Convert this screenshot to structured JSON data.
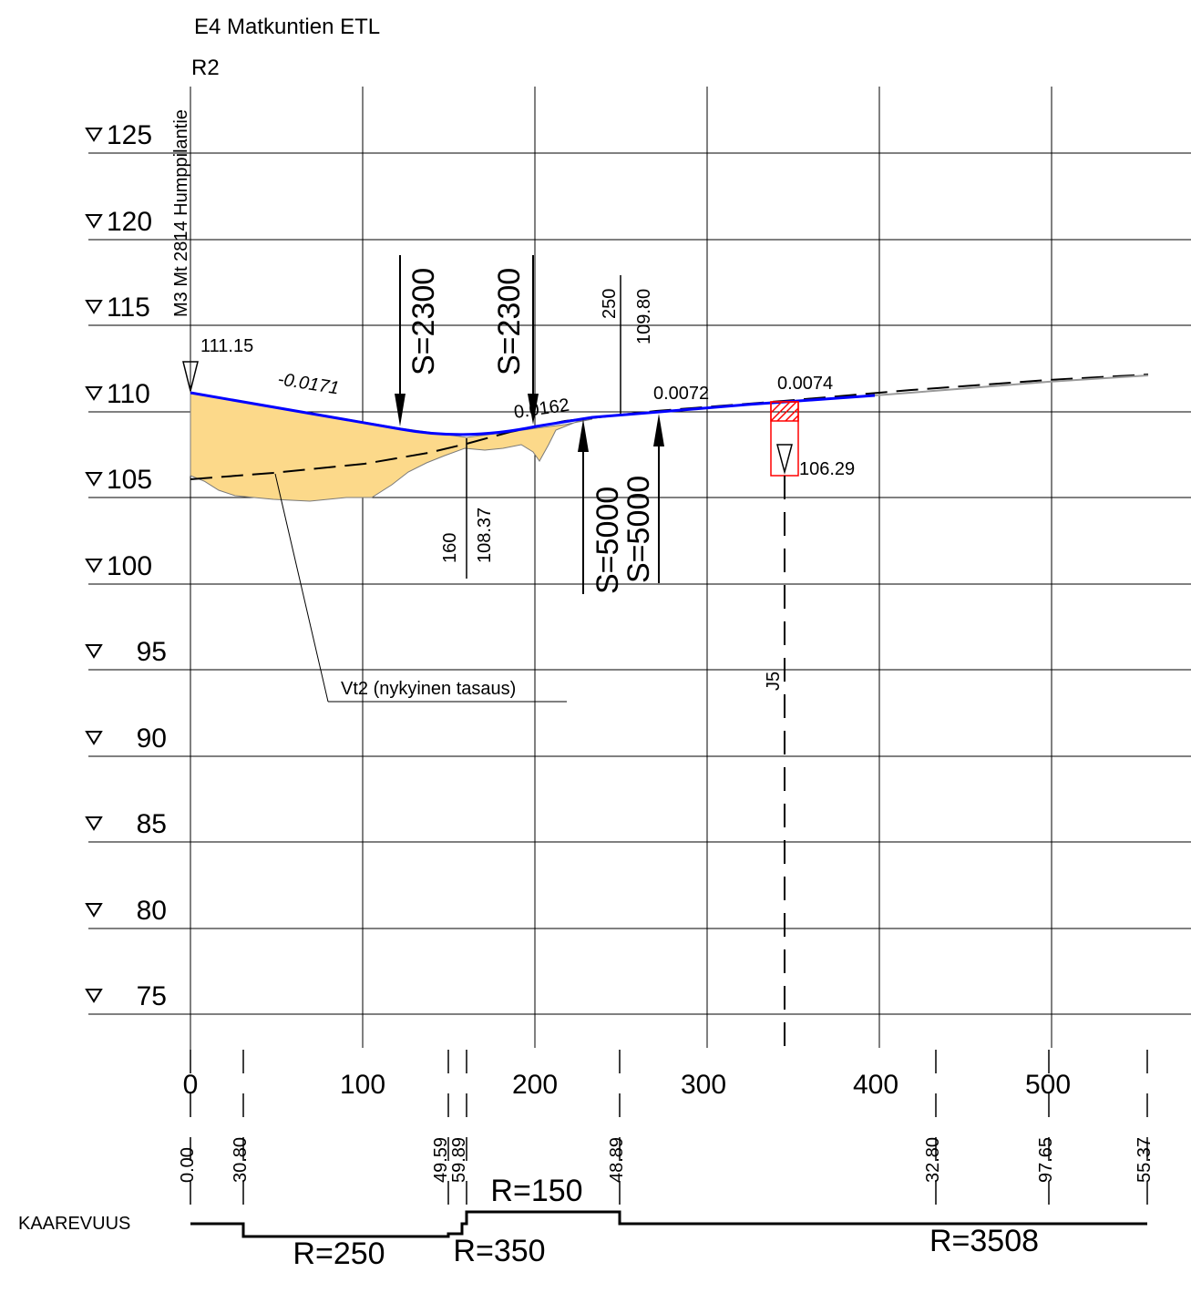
{
  "header": {
    "title": "E4 Matkuntien ETL",
    "subtitle": "R2"
  },
  "road_label": "M3 Mt 2814 Humppilantie",
  "elevation_labels": [
    "125",
    "120",
    "115",
    "110",
    "105",
    "100",
    "95",
    "90",
    "85",
    "80",
    "75"
  ],
  "station_labels": [
    "0",
    "100",
    "200",
    "300",
    "400",
    "500"
  ],
  "start_elevation": "111.15",
  "grades": [
    "-0.0171",
    "0.0162",
    "0.0072",
    "0.0074"
  ],
  "vertical_curves": [
    "S=2300",
    "S=2300",
    "S=5000",
    "S=5000"
  ],
  "pvi_points": [
    {
      "station": "160",
      "elevation": "108.37"
    },
    {
      "station": "250",
      "elevation": "109.80"
    }
  ],
  "culvert": {
    "name": "J5",
    "elevation": "106.29"
  },
  "existing_profile_label": "Vt2 (nykyinen tasaus)",
  "curvature": {
    "row_label": "KAAREVUUS",
    "stations": [
      "0.00",
      "30.80",
      "49.59",
      "59.89",
      "48.89",
      "32.80",
      "97.65",
      "55.37"
    ],
    "radii": [
      "R=250",
      "R=350",
      "R=150",
      "R=3508"
    ]
  },
  "colors": {
    "design_line": "#0000ff",
    "fill_area": "#fcd98a",
    "culvert": "#ff0000",
    "lines": "#000000"
  }
}
